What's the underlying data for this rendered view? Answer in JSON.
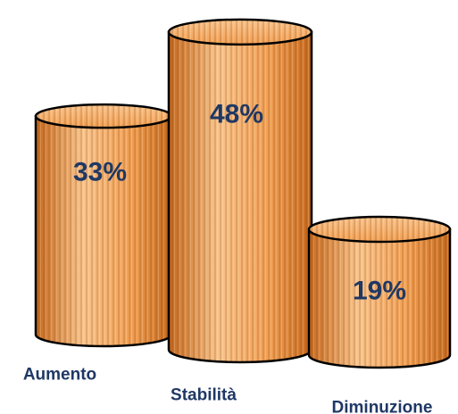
{
  "chart_data": {
    "type": "bar",
    "style": "3d-cylinder",
    "categories": [
      "Aumento",
      "Stabilità",
      "Diminuzione"
    ],
    "values": [
      33,
      48,
      19
    ],
    "value_labels": [
      "33%",
      "48%",
      "19%"
    ],
    "unit": "%",
    "title": "",
    "xlabel": "",
    "ylabel": "",
    "ylim": [
      0,
      50
    ],
    "grid": false,
    "legend": "none",
    "colors": {
      "bar_fill": "#F2A054",
      "bar_light": "#F9C48D",
      "bar_dark": "#C6691E",
      "bar_stroke": "#000000",
      "label_text": "#1F3864"
    }
  }
}
